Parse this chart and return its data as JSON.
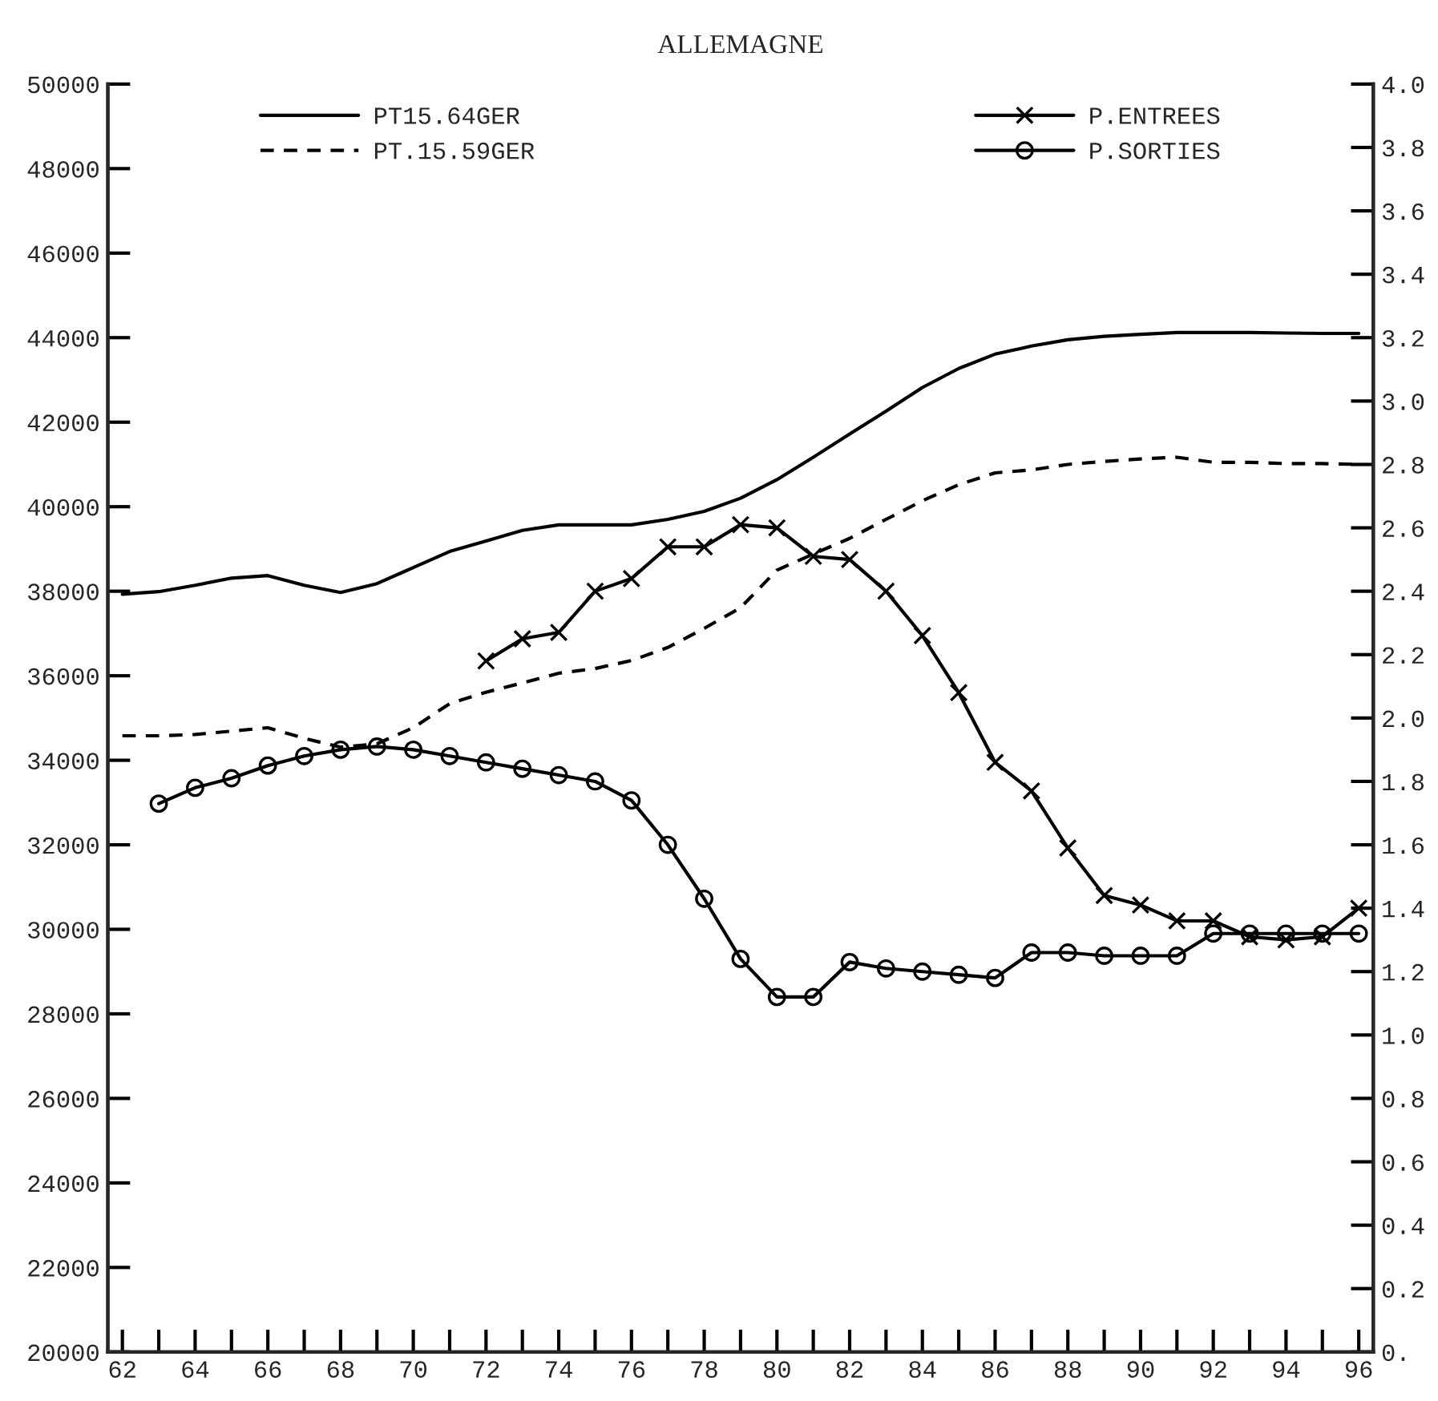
{
  "chart_data": {
    "type": "line",
    "title": "ALLEMAGNE",
    "xlim": [
      61.6,
      96.4
    ],
    "xticks": [
      62,
      {
        "value": 63,
        "label": null
      },
      64,
      {
        "value": 65,
        "label": null
      },
      66,
      {
        "value": 67,
        "label": null
      },
      68,
      {
        "value": 69,
        "label": null
      },
      70,
      {
        "value": 71,
        "label": null
      },
      72,
      {
        "value": 73,
        "label": null
      },
      74,
      {
        "value": 75,
        "label": null
      },
      76,
      {
        "value": 77,
        "label": null
      },
      78,
      {
        "value": 79,
        "label": null
      },
      80,
      {
        "value": 81,
        "label": null
      },
      82,
      {
        "value": 83,
        "label": null
      },
      84,
      {
        "value": 85,
        "label": null
      },
      86,
      {
        "value": 87,
        "label": null
      },
      88,
      {
        "value": 89,
        "label": null
      },
      90,
      {
        "value": 91,
        "label": null
      },
      92,
      {
        "value": 93,
        "label": null
      },
      94,
      {
        "value": 95,
        "label": null
      },
      96
    ],
    "ylim": [
      20000,
      50000
    ],
    "yticks": [
      20000,
      22000,
      24000,
      26000,
      28000,
      30000,
      32000,
      34000,
      36000,
      38000,
      40000,
      42000,
      44000,
      46000,
      48000,
      50000
    ],
    "y2lim": [
      0,
      4
    ],
    "y2ticks": [
      {
        "value": 0,
        "label": "0."
      },
      {
        "value": 0.2,
        "label": "0.2"
      },
      {
        "value": 0.4,
        "label": "0.4"
      },
      {
        "value": 0.6,
        "label": "0.6"
      },
      {
        "value": 0.8,
        "label": "0.8"
      },
      {
        "value": 1.0,
        "label": "1.0"
      },
      {
        "value": 1.2,
        "label": "1.2"
      },
      {
        "value": 1.4,
        "label": "1.4"
      },
      {
        "value": 1.6,
        "label": "1.6"
      },
      {
        "value": 1.8,
        "label": "1.8"
      },
      {
        "value": 2.0,
        "label": "2.0"
      },
      {
        "value": 2.2,
        "label": "2.2"
      },
      {
        "value": 2.4,
        "label": "2.4"
      },
      {
        "value": 2.6,
        "label": "2.6"
      },
      {
        "value": 2.8,
        "label": "2.8"
      },
      {
        "value": 3.0,
        "label": "3.0"
      },
      {
        "value": 3.2,
        "label": "3.2"
      },
      {
        "value": 3.4,
        "label": "3.4"
      },
      {
        "value": 3.6,
        "label": "3.6"
      },
      {
        "value": 3.8,
        "label": "3.8"
      },
      {
        "value": 4.0,
        "label": "4.0"
      }
    ],
    "legend": "top",
    "series": [
      {
        "name": "PT15.64GER",
        "color": "#000000",
        "axis": "y",
        "line_style": "solid",
        "marker": "none",
        "x": [
          62,
          63,
          64,
          65,
          66,
          67,
          68,
          69,
          70,
          71,
          72,
          73,
          74,
          75,
          76,
          77,
          78,
          79,
          80,
          81,
          82,
          83,
          84,
          85,
          86,
          87,
          88,
          89,
          90,
          91,
          92,
          93,
          94,
          95,
          96
        ],
        "values": [
          37930,
          37990,
          38140,
          38310,
          38370,
          38140,
          37970,
          38180,
          38560,
          38940,
          39190,
          39440,
          39570,
          39570,
          39570,
          39700,
          39890,
          40200,
          40640,
          41170,
          41720,
          42260,
          42820,
          43270,
          43610,
          43800,
          43950,
          44030,
          44080,
          44120,
          44120,
          44120,
          44110,
          44100,
          44100
        ]
      },
      {
        "name": "PT.15.59GER",
        "color": "#000000",
        "axis": "y",
        "line_style": "dashed",
        "marker": "none",
        "x": [
          62,
          63,
          64,
          65,
          66,
          67,
          68,
          69,
          70,
          71,
          72,
          73,
          74,
          75,
          76,
          77,
          78,
          79,
          80,
          81,
          82,
          83,
          84,
          85,
          86,
          87,
          88,
          89,
          90,
          91,
          92,
          93,
          94,
          95,
          96
        ],
        "values": [
          34580,
          34580,
          34610,
          34690,
          34770,
          34520,
          34310,
          34390,
          34770,
          35340,
          35610,
          35830,
          36060,
          36170,
          36360,
          36670,
          37120,
          37610,
          38500,
          38880,
          39250,
          39700,
          40140,
          40520,
          40800,
          40870,
          41000,
          41070,
          41130,
          41170,
          41050,
          41050,
          41020,
          41020,
          41000
        ]
      },
      {
        "name": "P.ENTREES",
        "color": "#000000",
        "axis": "y2",
        "line_style": "solid",
        "marker": "cross",
        "x": [
          72,
          73,
          74,
          75,
          76,
          77,
          78,
          79,
          80,
          81,
          82,
          83,
          84,
          85,
          86,
          87,
          88,
          89,
          90,
          91,
          92,
          93,
          94,
          95,
          96
        ],
        "values": [
          2.18,
          2.25,
          2.27,
          2.4,
          2.44,
          2.54,
          2.54,
          2.61,
          2.6,
          2.51,
          2.5,
          2.4,
          2.26,
          2.08,
          1.86,
          1.77,
          1.59,
          1.44,
          1.41,
          1.36,
          1.36,
          1.31,
          1.3,
          1.31,
          1.4
        ]
      },
      {
        "name": "P.SORTIES",
        "color": "#000000",
        "axis": "y2",
        "line_style": "solid",
        "marker": "circle",
        "x": [
          63,
          64,
          65,
          66,
          67,
          68,
          69,
          70,
          71,
          72,
          73,
          74,
          75,
          76,
          77,
          78,
          79,
          80,
          81,
          82,
          83,
          84,
          85,
          86,
          87,
          88,
          89,
          90,
          91,
          92,
          93,
          94,
          95,
          96
        ],
        "values": [
          1.73,
          1.78,
          1.81,
          1.85,
          1.88,
          1.9,
          1.91,
          1.9,
          1.88,
          1.86,
          1.84,
          1.82,
          1.8,
          1.74,
          1.6,
          1.43,
          1.24,
          1.12,
          1.12,
          1.23,
          1.21,
          1.2,
          1.19,
          1.18,
          1.26,
          1.26,
          1.25,
          1.25,
          1.25,
          1.32,
          1.32,
          1.32,
          1.32,
          1.32
        ]
      }
    ]
  }
}
